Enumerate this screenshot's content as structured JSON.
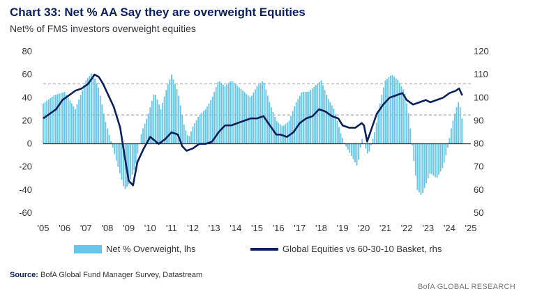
{
  "chart_data": {
    "type": "bar+line",
    "title": "Chart 33: Net % AA Say they are overweight Equities",
    "subtitle": "Net% of FMS investors overweight equities",
    "x_tick_labels": [
      "'05",
      "'06",
      "'07",
      "'08",
      "'09",
      "'10",
      "'11",
      "'12",
      "'13",
      "'14",
      "'15",
      "'16",
      "'17",
      "'18",
      "'19",
      "'20",
      "'21",
      "'22",
      "'23",
      "'24",
      "'25"
    ],
    "x_range": [
      2005,
      2025
    ],
    "y_left": {
      "range": [
        -60,
        80
      ],
      "ticks": [
        -60,
        -40,
        -20,
        0,
        20,
        40,
        60,
        80
      ]
    },
    "y_right": {
      "range": [
        50,
        120
      ],
      "ticks": [
        50,
        60,
        70,
        80,
        90,
        100,
        110,
        120
      ]
    },
    "reference_lines_lhs": [
      52,
      25
    ],
    "series": [
      {
        "name": "Net % Overweight, lhs",
        "axis": "left",
        "kind": "bar",
        "color": "#66c7eb",
        "points": [
          [
            2005.0,
            35
          ],
          [
            2005.5,
            42
          ],
          [
            2006.0,
            45
          ],
          [
            2006.5,
            30
          ],
          [
            2007.0,
            55
          ],
          [
            2007.3,
            62
          ],
          [
            2007.6,
            48
          ],
          [
            2007.9,
            20
          ],
          [
            2008.2,
            0
          ],
          [
            2008.5,
            -20
          ],
          [
            2008.8,
            -40
          ],
          [
            2009.0,
            -35
          ],
          [
            2009.3,
            -20
          ],
          [
            2009.6,
            10
          ],
          [
            2009.9,
            25
          ],
          [
            2010.2,
            45
          ],
          [
            2010.5,
            30
          ],
          [
            2010.8,
            50
          ],
          [
            2011.0,
            60
          ],
          [
            2011.3,
            45
          ],
          [
            2011.6,
            15
          ],
          [
            2011.8,
            5
          ],
          [
            2012.0,
            15
          ],
          [
            2012.3,
            25
          ],
          [
            2012.6,
            30
          ],
          [
            2012.9,
            40
          ],
          [
            2013.2,
            55
          ],
          [
            2013.5,
            50
          ],
          [
            2013.8,
            55
          ],
          [
            2014.1,
            50
          ],
          [
            2014.4,
            45
          ],
          [
            2014.7,
            40
          ],
          [
            2015.0,
            50
          ],
          [
            2015.3,
            55
          ],
          [
            2015.6,
            35
          ],
          [
            2015.9,
            20
          ],
          [
            2016.2,
            15
          ],
          [
            2016.5,
            20
          ],
          [
            2016.8,
            35
          ],
          [
            2017.1,
            45
          ],
          [
            2017.4,
            45
          ],
          [
            2017.7,
            50
          ],
          [
            2018.0,
            55
          ],
          [
            2018.3,
            40
          ],
          [
            2018.6,
            30
          ],
          [
            2018.9,
            10
          ],
          [
            2019.1,
            0
          ],
          [
            2019.4,
            -10
          ],
          [
            2019.7,
            -20
          ],
          [
            2019.9,
            5
          ],
          [
            2020.2,
            -10
          ],
          [
            2020.5,
            10
          ],
          [
            2020.8,
            40
          ],
          [
            2021.0,
            55
          ],
          [
            2021.3,
            60
          ],
          [
            2021.6,
            55
          ],
          [
            2021.9,
            45
          ],
          [
            2022.1,
            25
          ],
          [
            2022.3,
            -10
          ],
          [
            2022.5,
            -40
          ],
          [
            2022.7,
            -45
          ],
          [
            2022.9,
            -35
          ],
          [
            2023.1,
            -25
          ],
          [
            2023.4,
            -30
          ],
          [
            2023.7,
            -20
          ],
          [
            2023.9,
            -5
          ],
          [
            2024.1,
            15
          ],
          [
            2024.3,
            30
          ],
          [
            2024.45,
            38
          ],
          [
            2024.6,
            20
          ]
        ]
      },
      {
        "name": "Global Equities vs 60-30-10 Basket, rhs",
        "axis": "right",
        "kind": "line",
        "color": "#0b1f5c",
        "points": [
          [
            2005.0,
            91
          ],
          [
            2005.3,
            93
          ],
          [
            2005.6,
            95
          ],
          [
            2005.9,
            99
          ],
          [
            2006.2,
            101
          ],
          [
            2006.5,
            103
          ],
          [
            2006.8,
            104
          ],
          [
            2007.1,
            106
          ],
          [
            2007.4,
            110
          ],
          [
            2007.6,
            109
          ],
          [
            2007.8,
            106
          ],
          [
            2008.0,
            102
          ],
          [
            2008.3,
            96
          ],
          [
            2008.6,
            87
          ],
          [
            2008.8,
            75
          ],
          [
            2009.0,
            64
          ],
          [
            2009.2,
            62
          ],
          [
            2009.4,
            72
          ],
          [
            2009.7,
            78
          ],
          [
            2010.0,
            83
          ],
          [
            2010.4,
            80
          ],
          [
            2010.7,
            82
          ],
          [
            2011.0,
            85
          ],
          [
            2011.3,
            84
          ],
          [
            2011.5,
            79
          ],
          [
            2011.7,
            77
          ],
          [
            2012.0,
            78
          ],
          [
            2012.3,
            80
          ],
          [
            2012.6,
            80
          ],
          [
            2012.9,
            81
          ],
          [
            2013.2,
            85
          ],
          [
            2013.5,
            88
          ],
          [
            2013.8,
            88
          ],
          [
            2014.1,
            89
          ],
          [
            2014.4,
            90
          ],
          [
            2014.7,
            91
          ],
          [
            2015.0,
            91
          ],
          [
            2015.3,
            92
          ],
          [
            2015.6,
            88
          ],
          [
            2015.9,
            84
          ],
          [
            2016.1,
            84
          ],
          [
            2016.4,
            83
          ],
          [
            2016.7,
            85
          ],
          [
            2017.0,
            89
          ],
          [
            2017.3,
            91
          ],
          [
            2017.6,
            92
          ],
          [
            2017.9,
            95
          ],
          [
            2018.2,
            94
          ],
          [
            2018.5,
            92
          ],
          [
            2018.8,
            91
          ],
          [
            2019.0,
            88
          ],
          [
            2019.3,
            87
          ],
          [
            2019.6,
            87
          ],
          [
            2019.9,
            89
          ],
          [
            2020.0,
            88
          ],
          [
            2020.15,
            81
          ],
          [
            2020.3,
            85
          ],
          [
            2020.6,
            93
          ],
          [
            2020.9,
            97
          ],
          [
            2021.2,
            100
          ],
          [
            2021.5,
            101
          ],
          [
            2021.8,
            102
          ],
          [
            2022.0,
            99
          ],
          [
            2022.3,
            97
          ],
          [
            2022.6,
            98
          ],
          [
            2022.9,
            99
          ],
          [
            2023.1,
            98
          ],
          [
            2023.4,
            99
          ],
          [
            2023.7,
            100
          ],
          [
            2024.0,
            102
          ],
          [
            2024.3,
            103
          ],
          [
            2024.45,
            104
          ],
          [
            2024.6,
            101
          ]
        ]
      }
    ],
    "legend": {
      "bar_label": "Net % Overweight, lhs",
      "line_label": "Global Equities vs 60-30-10 Basket, rhs"
    }
  },
  "source_label": "Source:",
  "source_text": "BofA Global Fund Manager Survey, Datastream",
  "brand": "BofA GLOBAL RESEARCH"
}
